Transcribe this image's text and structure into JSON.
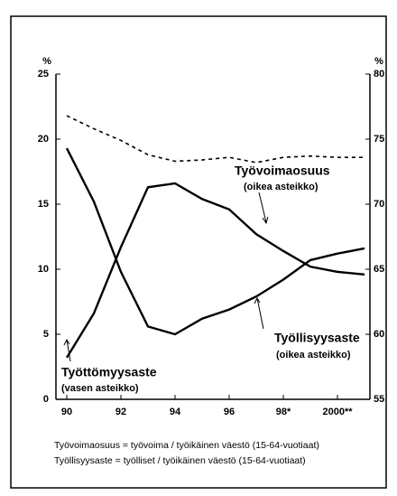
{
  "chart_data": {
    "type": "line",
    "ylabel": "%",
    "y2label": "%",
    "x": [
      1990,
      1991,
      1992,
      1993,
      1994,
      1995,
      1996,
      1997,
      1998,
      1999,
      2000,
      2001
    ],
    "xlim": [
      1989.6,
      2001.2
    ],
    "xticks": [
      {
        "value": 1990,
        "label": "90"
      },
      {
        "value": 1992,
        "label": "92"
      },
      {
        "value": 1994,
        "label": "94"
      },
      {
        "value": 1996,
        "label": "96"
      },
      {
        "value": 1998,
        "label": "98*"
      },
      {
        "value": 2000,
        "label": "2000**"
      }
    ],
    "ylim": [
      0,
      25
    ],
    "yticks": [
      0,
      5,
      10,
      15,
      20,
      25
    ],
    "y2lim": [
      55,
      80
    ],
    "y2ticks": [
      55,
      60,
      65,
      70,
      75,
      80
    ],
    "series": [
      {
        "name": "Työvoimaosuus",
        "scale_note": "(oikea asteikko)",
        "color": "#000000",
        "dashed": true,
        "axis": "y2",
        "values": [
          76.8,
          75.8,
          74.9,
          73.8,
          73.3,
          73.4,
          73.6,
          73.2,
          73.6,
          73.7,
          73.6,
          73.6
        ]
      },
      {
        "name": "Työllisyysaste",
        "scale_note": "(oikea asteikko)",
        "color": "#000000",
        "dashed": false,
        "axis": "y2",
        "values": [
          74.3,
          70.2,
          64.8,
          60.6,
          60.0,
          61.2,
          61.9,
          62.9,
          64.2,
          65.7,
          66.2,
          66.6
        ]
      },
      {
        "name": "Työttömyysaste",
        "scale_note": "(vasen asteikko)",
        "color": "#000000",
        "dashed": false,
        "axis": "y",
        "values": [
          3.2,
          6.6,
          11.7,
          16.3,
          16.6,
          15.4,
          14.6,
          12.7,
          11.4,
          10.2,
          9.8,
          9.6
        ]
      }
    ],
    "footnotes": [
      "Työvoimaosuus = työvoima / työikäinen väestö  (15-64-vuotiaat)",
      "Työllisyysaste = työlliset / työikäinen väestö  (15-64-vuotiaat)"
    ]
  }
}
